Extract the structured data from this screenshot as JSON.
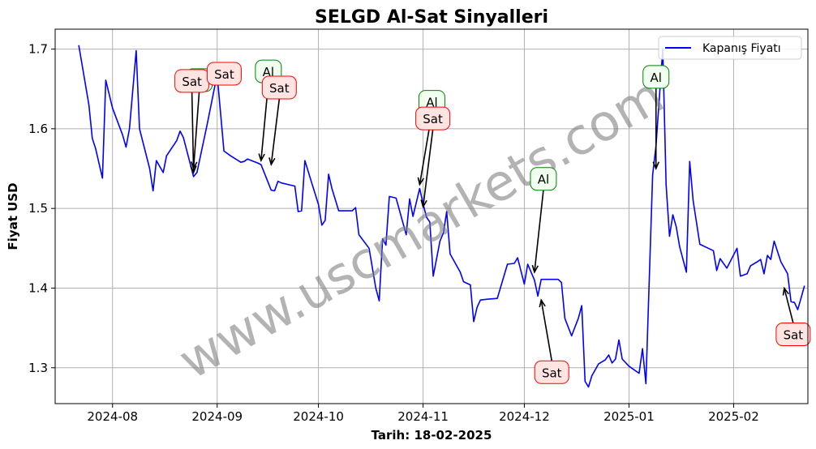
{
  "chart_data": {
    "type": "line",
    "title": "SELGD Al-Sat Sinyalleri",
    "xlabel": "Tarih: 18-02-2025",
    "ylabel": "Fiyat USD",
    "x_ticks": [
      "2024-08",
      "2024-09",
      "2024-10",
      "2024-11",
      "2024-12",
      "2025-01",
      "2025-02"
    ],
    "y_ticks": [
      "1.3",
      "1.4",
      "1.5",
      "1.6",
      "1.7"
    ],
    "ylim": [
      1.255,
      1.725
    ],
    "xlim": [
      "2024-07-15",
      "2025-02-23"
    ],
    "grid": true,
    "legend_position": "top-right",
    "series": [
      {
        "name": "Kapanış Fiyatı",
        "color": "#0000ff",
        "points": [
          [
            "2024-07-22",
            1.705
          ],
          [
            "2024-07-25",
            1.63
          ],
          [
            "2024-07-26",
            1.588
          ],
          [
            "2024-07-27",
            1.575
          ],
          [
            "2024-07-29",
            1.538
          ],
          [
            "2024-07-30",
            1.661
          ],
          [
            "2024-08-01",
            1.626
          ],
          [
            "2024-08-04",
            1.592
          ],
          [
            "2024-08-05",
            1.577
          ],
          [
            "2024-08-06",
            1.6
          ],
          [
            "2024-08-08",
            1.698
          ],
          [
            "2024-08-09",
            1.6
          ],
          [
            "2024-08-12",
            1.55
          ],
          [
            "2024-08-13",
            1.522
          ],
          [
            "2024-08-14",
            1.56
          ],
          [
            "2024-08-16",
            1.545
          ],
          [
            "2024-08-17",
            1.566
          ],
          [
            "2024-08-20",
            1.585
          ],
          [
            "2024-08-21",
            1.597
          ],
          [
            "2024-08-22",
            1.589
          ],
          [
            "2024-08-25",
            1.54
          ],
          [
            "2024-08-26",
            1.545
          ],
          [
            "2024-08-29",
            1.605
          ],
          [
            "2024-09-01",
            1.668
          ],
          [
            "2024-09-03",
            1.572
          ],
          [
            "2024-09-05",
            1.566
          ],
          [
            "2024-09-08",
            1.558
          ],
          [
            "2024-09-09",
            1.559
          ],
          [
            "2024-09-10",
            1.562
          ],
          [
            "2024-09-13",
            1.557
          ],
          [
            "2024-09-14",
            1.555
          ],
          [
            "2024-09-17",
            1.523
          ],
          [
            "2024-09-18",
            1.522
          ],
          [
            "2024-09-19",
            1.534
          ],
          [
            "2024-09-20",
            1.532
          ],
          [
            "2024-09-24",
            1.528
          ],
          [
            "2024-09-25",
            1.496
          ],
          [
            "2024-09-26",
            1.497
          ],
          [
            "2024-09-27",
            1.56
          ],
          [
            "2024-09-29",
            1.532
          ],
          [
            "2024-10-01",
            1.505
          ],
          [
            "2024-10-02",
            1.479
          ],
          [
            "2024-10-03",
            1.485
          ],
          [
            "2024-10-04",
            1.543
          ],
          [
            "2024-10-05",
            1.525
          ],
          [
            "2024-10-07",
            1.497
          ],
          [
            "2024-10-11",
            1.497
          ],
          [
            "2024-10-12",
            1.501
          ],
          [
            "2024-10-13",
            1.467
          ],
          [
            "2024-10-16",
            1.45
          ],
          [
            "2024-10-18",
            1.4
          ],
          [
            "2024-10-19",
            1.384
          ],
          [
            "2024-10-20",
            1.462
          ],
          [
            "2024-10-21",
            1.454
          ],
          [
            "2024-10-22",
            1.515
          ],
          [
            "2024-10-24",
            1.513
          ],
          [
            "2024-10-27",
            1.467
          ],
          [
            "2024-10-28",
            1.512
          ],
          [
            "2024-10-29",
            1.49
          ],
          [
            "2024-10-31",
            1.525
          ],
          [
            "2024-11-01",
            1.506
          ],
          [
            "2024-11-02",
            1.489
          ],
          [
            "2024-11-03",
            1.483
          ],
          [
            "2024-11-04",
            1.415
          ],
          [
            "2024-11-06",
            1.459
          ],
          [
            "2024-11-07",
            1.469
          ],
          [
            "2024-11-08",
            1.496
          ],
          [
            "2024-11-09",
            1.443
          ],
          [
            "2024-11-12",
            1.42
          ],
          [
            "2024-11-13",
            1.408
          ],
          [
            "2024-11-15",
            1.404
          ],
          [
            "2024-11-16",
            1.358
          ],
          [
            "2024-11-17",
            1.376
          ],
          [
            "2024-11-18",
            1.385
          ],
          [
            "2024-11-20",
            1.386
          ],
          [
            "2024-11-23",
            1.387
          ],
          [
            "2024-11-26",
            1.43
          ],
          [
            "2024-11-28",
            1.431
          ],
          [
            "2024-11-29",
            1.438
          ],
          [
            "2024-12-01",
            1.405
          ],
          [
            "2024-12-02",
            1.43
          ],
          [
            "2024-12-04",
            1.41
          ],
          [
            "2024-12-05",
            1.39
          ],
          [
            "2024-12-06",
            1.411
          ],
          [
            "2024-12-09",
            1.411
          ],
          [
            "2024-12-11",
            1.411
          ],
          [
            "2024-12-12",
            1.407
          ],
          [
            "2024-12-13",
            1.362
          ],
          [
            "2024-12-15",
            1.34
          ],
          [
            "2024-12-17",
            1.362
          ],
          [
            "2024-12-18",
            1.378
          ],
          [
            "2024-12-19",
            1.283
          ],
          [
            "2024-12-20",
            1.276
          ],
          [
            "2024-12-21",
            1.29
          ],
          [
            "2024-12-23",
            1.305
          ],
          [
            "2024-12-25",
            1.31
          ],
          [
            "2024-12-26",
            1.316
          ],
          [
            "2024-12-27",
            1.306
          ],
          [
            "2024-12-28",
            1.311
          ],
          [
            "2024-12-29",
            1.335
          ],
          [
            "2024-12-30",
            1.311
          ],
          [
            "2025-01-01",
            1.302
          ],
          [
            "2025-01-04",
            1.293
          ],
          [
            "2025-01-05",
            1.324
          ],
          [
            "2025-01-06",
            1.28
          ],
          [
            "2025-01-08",
            1.542
          ],
          [
            "2025-01-09",
            1.578
          ],
          [
            "2025-01-11",
            1.7
          ],
          [
            "2025-01-12",
            1.53
          ],
          [
            "2025-01-13",
            1.465
          ],
          [
            "2025-01-14",
            1.492
          ],
          [
            "2025-01-15",
            1.477
          ],
          [
            "2025-01-16",
            1.452
          ],
          [
            "2025-01-18",
            1.42
          ],
          [
            "2025-01-19",
            1.559
          ],
          [
            "2025-01-20",
            1.51
          ],
          [
            "2025-01-22",
            1.455
          ],
          [
            "2025-01-26",
            1.447
          ],
          [
            "2025-01-27",
            1.422
          ],
          [
            "2025-01-28",
            1.437
          ],
          [
            "2025-01-30",
            1.425
          ],
          [
            "2025-02-02",
            1.45
          ],
          [
            "2025-02-03",
            1.415
          ],
          [
            "2025-02-05",
            1.418
          ],
          [
            "2025-02-06",
            1.428
          ],
          [
            "2025-02-08",
            1.433
          ],
          [
            "2025-02-09",
            1.436
          ],
          [
            "2025-02-10",
            1.418
          ],
          [
            "2025-02-11",
            1.441
          ],
          [
            "2025-02-12",
            1.436
          ],
          [
            "2025-02-13",
            1.459
          ],
          [
            "2025-02-15",
            1.433
          ],
          [
            "2025-02-17",
            1.418
          ],
          [
            "2025-02-18",
            1.383
          ],
          [
            "2025-02-19",
            1.382
          ],
          [
            "2025-02-20",
            1.373
          ],
          [
            "2025-02-21",
            1.388
          ],
          [
            "2025-02-22",
            1.403
          ]
        ]
      }
    ],
    "signals": [
      {
        "label": "Al",
        "type": "buy",
        "date": "2024-08-25",
        "price": 1.545
      },
      {
        "label": "Sat",
        "type": "sell",
        "date": "2024-08-25",
        "price": 1.54
      },
      {
        "label": "Sat",
        "type": "sell",
        "date": "2024-08-30",
        "price": 1.665
      },
      {
        "label": "Al",
        "type": "buy",
        "date": "2024-09-14",
        "price": 1.555
      },
      {
        "label": "Sat",
        "type": "sell",
        "date": "2024-09-17",
        "price": 1.55
      },
      {
        "label": "Al",
        "type": "buy",
        "date": "2024-10-31",
        "price": 1.525
      },
      {
        "label": "Sat",
        "type": "sell",
        "date": "2024-11-01",
        "price": 1.497
      },
      {
        "label": "Al",
        "type": "buy",
        "date": "2024-12-04",
        "price": 1.415
      },
      {
        "label": "Sat",
        "type": "sell",
        "date": "2024-12-06",
        "price": 1.39
      },
      {
        "label": "Al",
        "type": "buy",
        "date": "2025-01-09",
        "price": 1.545
      },
      {
        "label": "Sat",
        "type": "sell",
        "date": "2025-02-16",
        "price": 1.405
      }
    ]
  },
  "watermark": "www.uscmarkets.com",
  "colors": {
    "line": "#0000ff",
    "buy_edge": "#008000",
    "buy_fill": "#f0fff0",
    "sell_edge": "#ff0000",
    "sell_fill": "#ffe4e1",
    "grid": "#b0b0b0",
    "watermark": "#808080"
  }
}
